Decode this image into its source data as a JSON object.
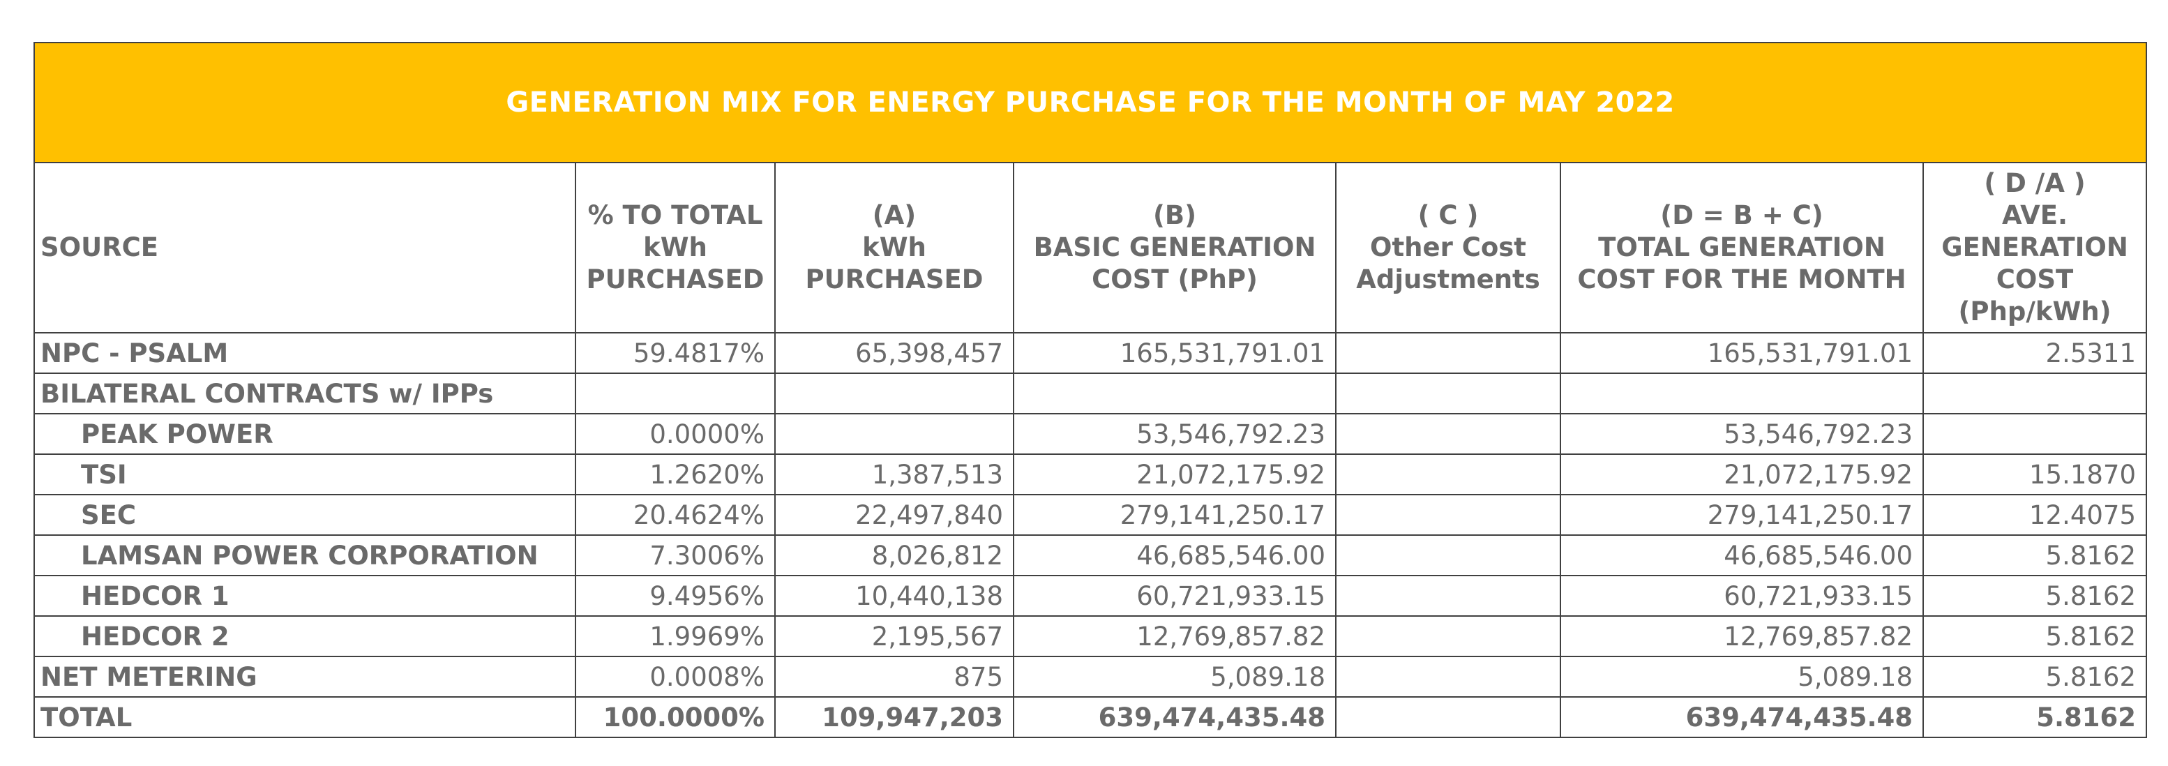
{
  "title": "GENERATION MIX FOR ENERGY PURCHASE FOR THE MONTH OF MAY 2022",
  "headers": [
    {
      "lines": [
        "SOURCE"
      ]
    },
    {
      "lines": [
        "% TO TOTAL",
        "kWh",
        "PURCHASED"
      ]
    },
    {
      "lines": [
        "(A)",
        "kWh",
        "PURCHASED"
      ]
    },
    {
      "lines": [
        "(B)",
        "BASIC GENERATION",
        "COST (PhP)"
      ]
    },
    {
      "lines": [
        "( C )",
        "Other Cost",
        "Adjustments"
      ]
    },
    {
      "lines": [
        "(D = B + C)",
        "TOTAL GENERATION",
        "COST FOR THE MONTH"
      ]
    },
    {
      "lines": [
        "( D /A )",
        "AVE.",
        "GENERATION",
        "COST",
        "(Php/kWh)"
      ]
    }
  ],
  "rows": [
    {
      "source": "NPC - PSALM",
      "pct": "59.4817%",
      "kwh": "65,398,457",
      "basic": "165,531,791.01",
      "other": "",
      "total": "165,531,791.01",
      "ave": "2.5311"
    },
    {
      "source": "BILATERAL CONTRACTS w/ IPPs",
      "pct": "",
      "kwh": "",
      "basic": "",
      "other": "",
      "total": "",
      "ave": ""
    },
    {
      "source": "PEAK POWER",
      "pct": "0.0000%",
      "kwh": "",
      "basic": "53,546,792.23",
      "other": "",
      "total": "53,546,792.23",
      "ave": ""
    },
    {
      "source": "TSI",
      "pct": "1.2620%",
      "kwh": "1,387,513",
      "basic": "21,072,175.92",
      "other": "",
      "total": "21,072,175.92",
      "ave": "15.1870"
    },
    {
      "source": "SEC",
      "pct": "20.4624%",
      "kwh": "22,497,840",
      "basic": "279,141,250.17",
      "other": "",
      "total": "279,141,250.17",
      "ave": "12.4075"
    },
    {
      "source": "LAMSAN POWER CORPORATION",
      "pct": "7.3006%",
      "kwh": "8,026,812",
      "basic": "46,685,546.00",
      "other": "",
      "total": "46,685,546.00",
      "ave": "5.8162"
    },
    {
      "source": "HEDCOR 1",
      "pct": "9.4956%",
      "kwh": "10,440,138",
      "basic": "60,721,933.15",
      "other": "",
      "total": "60,721,933.15",
      "ave": "5.8162"
    },
    {
      "source": "HEDCOR 2",
      "pct": "1.9969%",
      "kwh": "2,195,567",
      "basic": "12,769,857.82",
      "other": "",
      "total": "12,769,857.82",
      "ave": "5.8162"
    },
    {
      "source": "NET METERING",
      "pct": "0.0008%",
      "kwh": "875",
      "basic": "5,089.18",
      "other": "",
      "total": "5,089.18",
      "ave": "5.8162"
    },
    {
      "source": "TOTAL",
      "pct": "100.0000%",
      "kwh": "109,947,203",
      "basic": "639,474,435.48",
      "other": "",
      "total": "639,474,435.48",
      "ave": "5.8162"
    }
  ]
}
